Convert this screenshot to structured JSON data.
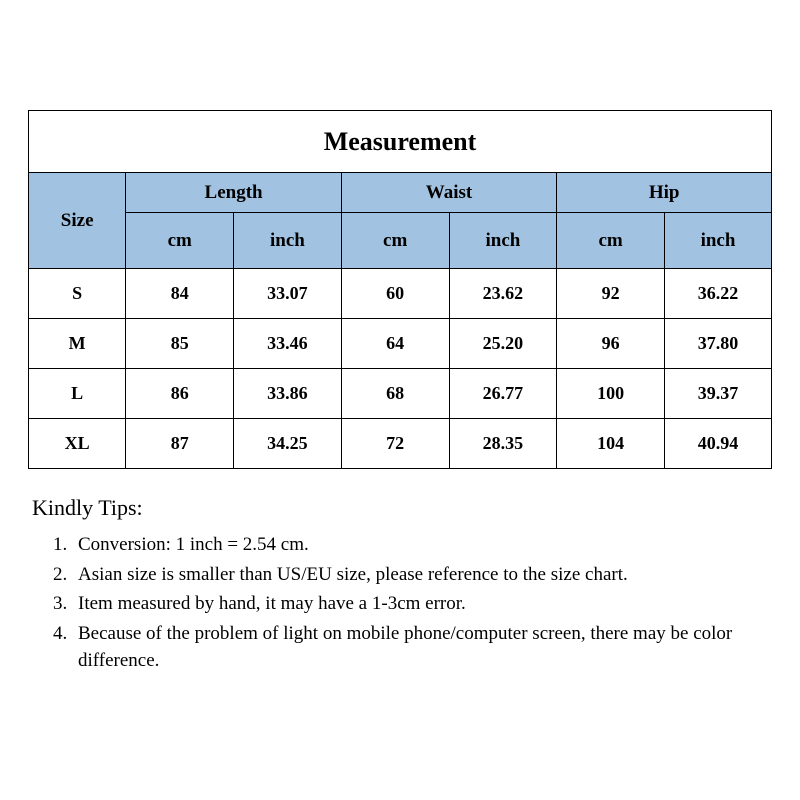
{
  "table": {
    "type": "table",
    "title": "Measurement",
    "title_fontsize": 26,
    "header_bg": "#a1c3e1",
    "body_bg": "#ffffff",
    "border_color": "#000000",
    "text_color": "#000000",
    "header_fontsize": 19,
    "body_fontsize": 18,
    "font_family": "Times New Roman",
    "size_label": "Size",
    "groups": [
      {
        "label": "Length",
        "units": [
          "cm",
          "inch"
        ]
      },
      {
        "label": "Waist",
        "units": [
          "cm",
          "inch"
        ]
      },
      {
        "label": "Hip",
        "units": [
          "cm",
          "inch"
        ]
      }
    ],
    "rows": [
      {
        "size": "S",
        "values": [
          "84",
          "33.07",
          "60",
          "23.62",
          "92",
          "36.22"
        ]
      },
      {
        "size": "M",
        "values": [
          "85",
          "33.46",
          "64",
          "25.20",
          "96",
          "37.80"
        ]
      },
      {
        "size": "L",
        "values": [
          "86",
          "33.86",
          "68",
          "26.77",
          "100",
          "39.37"
        ]
      },
      {
        "size": "XL",
        "values": [
          "87",
          "34.25",
          "72",
          "28.35",
          "104",
          "40.94"
        ]
      }
    ],
    "column_widths_pct": [
      13.1,
      14.5,
      14.5,
      14.5,
      14.5,
      14.5,
      14.5
    ]
  },
  "tips": {
    "title": "Kindly Tips:",
    "title_fontsize": 22,
    "body_fontsize": 19,
    "items": [
      "Conversion: 1 inch = 2.54 cm.",
      "Asian size is smaller than US/EU size, please reference to the size chart.",
      "Item measured by hand, it may have a 1-3cm error.",
      "Because of the problem of light on mobile phone/computer screen, there may be color difference."
    ]
  }
}
